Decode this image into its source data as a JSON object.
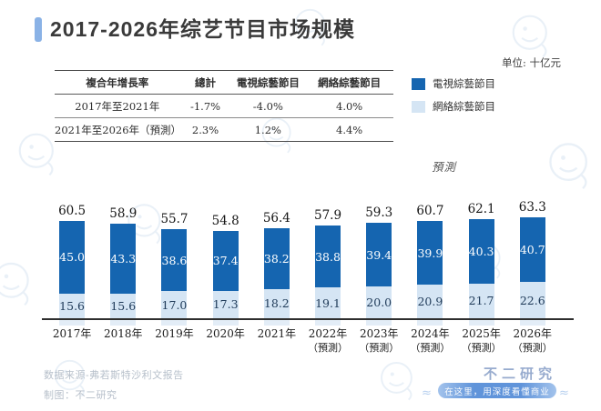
{
  "title": "2017-2026年综艺节目市场规模",
  "unit_label": "单位: 十亿元",
  "table": {
    "headers": [
      "複合年增長率",
      "總計",
      "電視綜藝節目",
      "網絡綜藝節目"
    ],
    "rows": [
      [
        "2017年至2021年",
        "-1.7%",
        "-4.0%",
        "4.0%"
      ],
      [
        "2021年至2026年（預測）",
        "2.3%",
        "1.2%",
        "4.4%"
      ]
    ]
  },
  "legend": [
    {
      "label": "電視綜藝節目",
      "color": "#1565b0"
    },
    {
      "label": "網絡綜藝節目",
      "color": "#d5e5f4"
    }
  ],
  "chart_data": {
    "type": "bar",
    "stacked": true,
    "title": "2017-2026年综艺节目市场规模",
    "unit": "十亿元",
    "forecast_note": "預測",
    "legend_position": "top-right",
    "categories": [
      "2017年",
      "2018年",
      "2019年",
      "2020年",
      "2021年",
      "2022年",
      "2023年",
      "2024年",
      "2025年",
      "2026年"
    ],
    "category_notes": [
      "",
      "",
      "",
      "",
      "",
      "（預測）",
      "（預測）",
      "（預測）",
      "（預測）",
      "（預測）"
    ],
    "series": [
      {
        "name": "電視綜藝節目",
        "color": "#1565b0",
        "values": [
          45.0,
          43.3,
          38.6,
          37.4,
          38.2,
          38.8,
          39.4,
          39.9,
          40.3,
          40.7
        ]
      },
      {
        "name": "網絡綜藝節目",
        "color": "#d5e5f4",
        "values": [
          15.6,
          15.6,
          17.0,
          17.3,
          18.2,
          19.1,
          20.0,
          20.9,
          21.7,
          22.6
        ]
      }
    ],
    "totals": [
      60.5,
      58.9,
      55.7,
      54.8,
      56.4,
      57.9,
      59.3,
      60.7,
      62.1,
      63.3
    ],
    "ylim": [
      0,
      71
    ],
    "grid": false
  },
  "footer": {
    "source": "数据来源-弗若斯特沙利文报告",
    "credit": "制图：不二研究",
    "logo": "不二研究",
    "slogan": "在这里，用深度看懂商业"
  }
}
